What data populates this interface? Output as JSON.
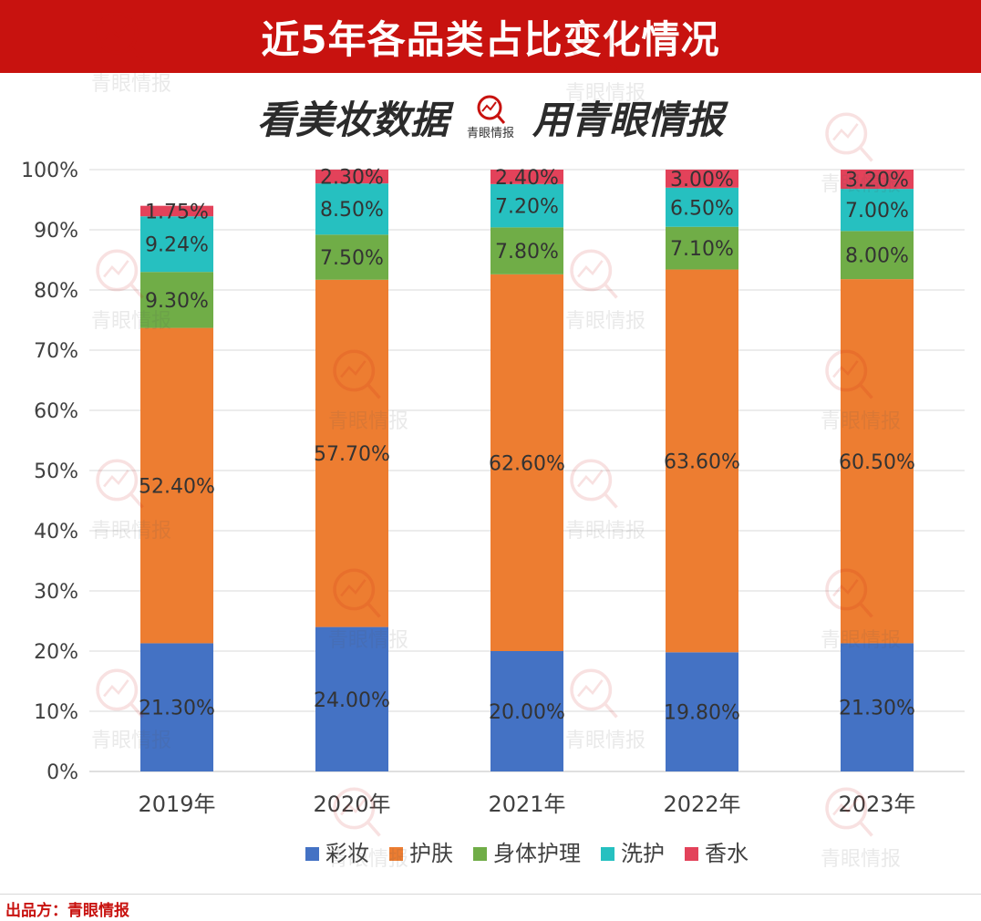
{
  "header": {
    "title": "近5年各品类占比变化情况"
  },
  "slogan": {
    "left": "看美妆数据",
    "logo_text": "青眼情报",
    "right": "用青眼情报"
  },
  "watermark": {
    "text": "青眼情报",
    "icon": "magnifier-chart-icon"
  },
  "footer": {
    "label": "出品方：",
    "brand": "青眼情报"
  },
  "colors": {
    "header_bg": "#c8120f",
    "彩妆": "#4472c4",
    "护肤": "#ed7d31",
    "身体护理": "#70ad47",
    "洗护": "#26c0c0",
    "香水": "#e3425a"
  },
  "chart_data": {
    "type": "bar",
    "stacked": true,
    "categories": [
      "2019年",
      "2020年",
      "2021年",
      "2022年",
      "2023年"
    ],
    "series": [
      {
        "name": "彩妆",
        "values": [
          21.3,
          24.0,
          20.0,
          19.8,
          21.3
        ],
        "labels": [
          "21.30%",
          "24.00%",
          "20.00%",
          "19.80%",
          "21.30%"
        ]
      },
      {
        "name": "护肤",
        "values": [
          52.4,
          57.7,
          62.6,
          63.6,
          60.5
        ],
        "labels": [
          "52.40%",
          "57.70%",
          "62.60%",
          "63.60%",
          "60.50%"
        ]
      },
      {
        "name": "身体护理",
        "values": [
          9.3,
          7.5,
          7.8,
          7.1,
          8.0
        ],
        "labels": [
          "9.30%",
          "7.50%",
          "7.80%",
          "7.10%",
          "8.00%"
        ]
      },
      {
        "name": "洗护",
        "values": [
          9.24,
          8.5,
          7.2,
          6.5,
          7.0
        ],
        "labels": [
          "9.24%",
          "8.50%",
          "7.20%",
          "6.50%",
          "7.00%"
        ]
      },
      {
        "name": "香水",
        "values": [
          1.75,
          2.3,
          2.4,
          3.0,
          3.2
        ],
        "labels": [
          "1.75%",
          "2.30%",
          "2.40%",
          "3.00%",
          "3.20%"
        ]
      }
    ],
    "yticks": [
      "0%",
      "10%",
      "20%",
      "30%",
      "40%",
      "50%",
      "60%",
      "70%",
      "80%",
      "90%",
      "100%"
    ],
    "ylim": [
      0,
      100
    ],
    "grid": true,
    "legend": "bottom"
  }
}
